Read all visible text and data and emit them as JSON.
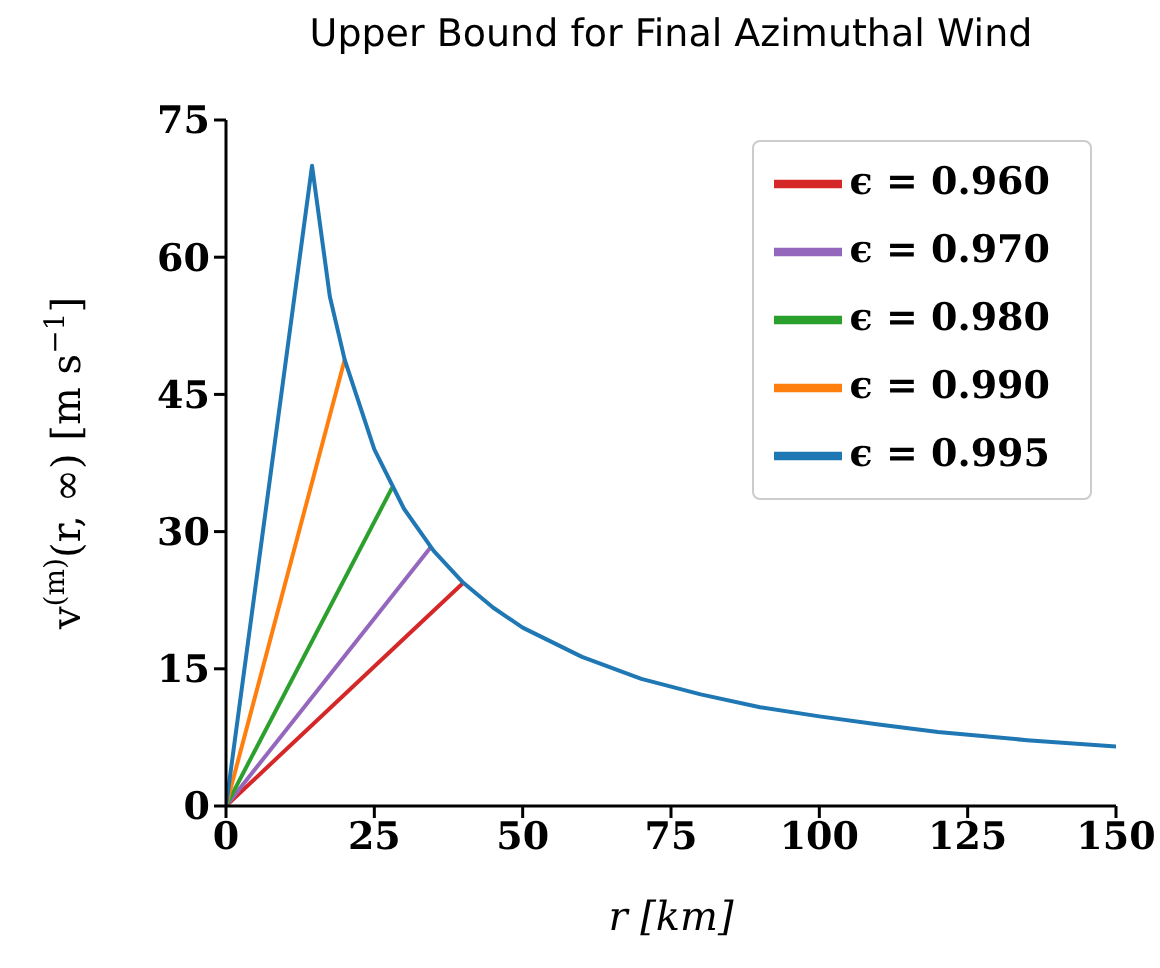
{
  "chart_data": {
    "type": "line",
    "title": "Upper Bound for Final Azimuthal Wind",
    "xlabel": "r   [km]",
    "ylabel": "v$^{(m)}$(r, ∞)   [m s$^{−1}$]",
    "xlim": [
      0,
      150
    ],
    "xticks": [
      0,
      25,
      50,
      75,
      100,
      125,
      150
    ],
    "ylim": [
      0,
      75
    ],
    "yticks": [
      0,
      15,
      30,
      45,
      60,
      75
    ],
    "grid": false,
    "legend": "top right",
    "series": [
      {
        "name": "ϵ = 0.960",
        "color": "#d62728",
        "x": [
          0,
          40
        ],
        "values": [
          0,
          24.4
        ]
      },
      {
        "name": "ϵ = 0.970",
        "color": "#9467bd",
        "x": [
          0,
          34.5
        ],
        "values": [
          0,
          28.3
        ]
      },
      {
        "name": "ϵ = 0.980",
        "color": "#2ca02c",
        "x": [
          0,
          28
        ],
        "values": [
          0,
          34.8
        ]
      },
      {
        "name": "ϵ = 0.990",
        "color": "#ff7f0e",
        "x": [
          0,
          20
        ],
        "values": [
          0,
          48.8
        ]
      },
      {
        "name": "ϵ = 0.995",
        "color": "#1f77b4",
        "x": [
          0,
          14.5,
          17.5,
          20,
          25,
          30,
          35,
          40,
          45,
          50,
          60,
          70,
          80,
          90,
          100,
          110,
          120,
          135,
          150
        ],
        "values": [
          0,
          70,
          55.7,
          48.8,
          39,
          32.5,
          27.9,
          24.4,
          21.7,
          19.5,
          16.3,
          13.9,
          12.2,
          10.8,
          9.8,
          8.9,
          8.1,
          7.2,
          6.5
        ]
      }
    ]
  }
}
